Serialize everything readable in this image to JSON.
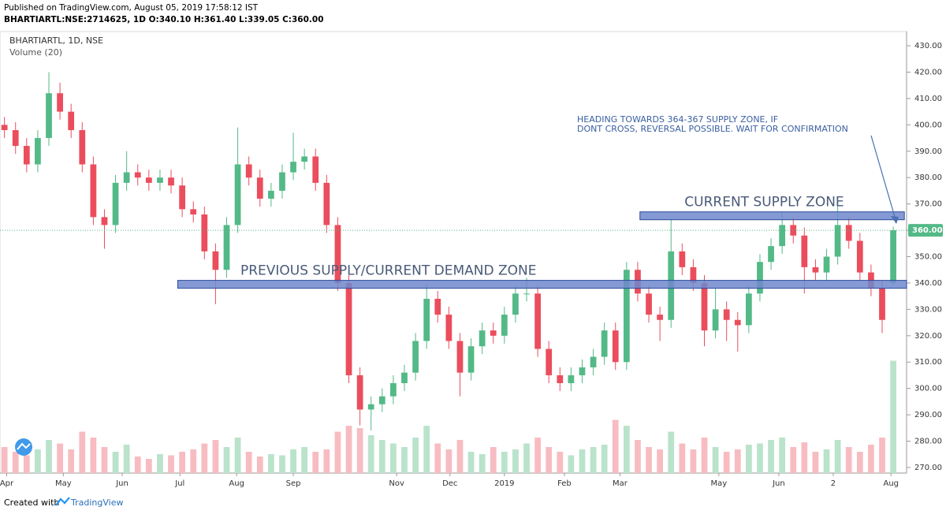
{
  "chart_data": {
    "type": "candlestick",
    "header": [
      "Published on TradingView.com, August 05, 2019 17:58:12 IST",
      "BHARTIARTL:NSE:2714625, 1D O:340.10 H:361.40 L:339.05 C:360.00"
    ],
    "legend": [
      "BHARTIARTL, 1D, NSE",
      "Volume (20)"
    ],
    "footer": [
      "Created with",
      "TradingView"
    ],
    "up_color": "#53b987",
    "down_color": "#eb4d5c",
    "volume_up_color": "#b9e3cb",
    "volume_down_color": "#f7bcc1",
    "open": [
      400,
      398,
      392,
      385,
      395,
      412,
      405,
      398,
      385,
      365,
      362,
      378,
      382,
      380,
      378,
      380,
      377,
      368,
      366,
      352,
      345,
      362,
      385,
      380,
      372,
      375,
      382,
      386,
      388,
      378,
      362,
      340,
      305,
      292,
      294,
      297,
      302,
      306,
      318,
      334,
      328,
      318,
      306,
      316,
      322,
      320,
      328,
      336,
      336,
      315,
      305,
      302,
      305,
      308,
      312,
      322,
      310,
      345,
      336,
      328,
      326,
      352,
      346,
      340,
      322,
      330,
      326,
      324,
      336,
      348,
      354,
      362,
      358,
      346,
      344,
      350,
      362,
      356,
      344,
      338,
      340.1
    ],
    "high": [
      403,
      401,
      395,
      398,
      420,
      416,
      408,
      401,
      388,
      368,
      381,
      390,
      385,
      383,
      383,
      383,
      380,
      371,
      369,
      355,
      365,
      399,
      388,
      383,
      378,
      385,
      397,
      391,
      391,
      381,
      365,
      343,
      308,
      297,
      300,
      305,
      309,
      321,
      340,
      337,
      331,
      321,
      319,
      325,
      325,
      331,
      339,
      342,
      339,
      318,
      308,
      308,
      311,
      315,
      325,
      325,
      348,
      348,
      339,
      331,
      364,
      355,
      349,
      343,
      338,
      333,
      329,
      339,
      351,
      357,
      367,
      365,
      361,
      349,
      353,
      371,
      365,
      359,
      347,
      341,
      361.4
    ],
    "low": [
      395,
      389,
      382,
      382,
      392,
      402,
      395,
      382,
      362,
      353,
      359,
      375,
      377,
      375,
      375,
      374,
      365,
      363,
      349,
      332,
      342,
      359,
      377,
      369,
      369,
      372,
      379,
      383,
      375,
      359,
      337,
      302,
      286,
      284,
      291,
      294,
      299,
      303,
      315,
      325,
      315,
      297,
      303,
      313,
      317,
      317,
      325,
      333,
      312,
      302,
      299,
      299,
      302,
      305,
      309,
      307,
      307,
      333,
      325,
      318,
      323,
      343,
      337,
      316,
      319,
      318,
      314,
      321,
      333,
      345,
      351,
      355,
      336,
      341,
      341,
      347,
      353,
      341,
      335,
      321,
      339.05
    ],
    "close": [
      398,
      392,
      385,
      395,
      412,
      405,
      398,
      385,
      365,
      362,
      378,
      382,
      380,
      378,
      380,
      377,
      368,
      366,
      352,
      345,
      362,
      385,
      380,
      372,
      375,
      382,
      386,
      388,
      378,
      362,
      340,
      305,
      292,
      294,
      297,
      302,
      306,
      318,
      334,
      328,
      318,
      306,
      316,
      322,
      320,
      328,
      336,
      336,
      315,
      305,
      302,
      305,
      308,
      312,
      322,
      310,
      345,
      336,
      328,
      326,
      352,
      346,
      340,
      322,
      330,
      326,
      324,
      336,
      348,
      354,
      362,
      358,
      346,
      344,
      350,
      362,
      356,
      344,
      338,
      326,
      360
    ],
    "volume": [
      22,
      18,
      15,
      20,
      28,
      25,
      20,
      35,
      30,
      22,
      18,
      24,
      14,
      12,
      16,
      15,
      18,
      20,
      25,
      28,
      22,
      30,
      18,
      14,
      16,
      15,
      20,
      22,
      18,
      20,
      35,
      40,
      38,
      32,
      28,
      25,
      22,
      30,
      40,
      25,
      20,
      28,
      18,
      16,
      22,
      18,
      20,
      25,
      30,
      22,
      18,
      15,
      20,
      22,
      24,
      45,
      40,
      28,
      22,
      20,
      35,
      25,
      20,
      30,
      22,
      18,
      20,
      24,
      25,
      28,
      30,
      22,
      26,
      18,
      20,
      28,
      22,
      18,
      24,
      30,
      95
    ],
    "vlim": [
      0,
      100
    ],
    "xlim": [
      -0.4,
      81.2
    ],
    "xticks": [
      {
        "value": 0.2,
        "label": "Apr"
      },
      {
        "value": 5.3,
        "label": "May"
      },
      {
        "value": 10.6,
        "label": "Jun"
      },
      {
        "value": 15.8,
        "label": "Jul"
      },
      {
        "value": 20.9,
        "label": "Aug"
      },
      {
        "value": 26.0,
        "label": "Sep"
      },
      {
        "value": 35.3,
        "label": "Nov"
      },
      {
        "value": 40.1,
        "label": "Dec"
      },
      {
        "value": 45.0,
        "label": "2019"
      },
      {
        "value": 50.4,
        "label": "Feb"
      },
      {
        "value": 55.4,
        "label": "Mar"
      },
      {
        "value": 64.3,
        "label": "May"
      },
      {
        "value": 69.7,
        "label": "Jun"
      },
      {
        "value": 74.6,
        "label": "2"
      },
      {
        "value": 79.8,
        "label": "Aug"
      }
    ],
    "ylim": [
      267.9,
      435.4
    ],
    "yticks": [
      {
        "value": 270,
        "label": "270.00"
      },
      {
        "value": 280,
        "label": "280.00"
      },
      {
        "value": 290,
        "label": "290.00"
      },
      {
        "value": 300,
        "label": "300.00"
      },
      {
        "value": 310,
        "label": "310.00"
      },
      {
        "value": 320,
        "label": "320.00"
      },
      {
        "value": 330,
        "label": "330.00"
      },
      {
        "value": 340,
        "label": "340.00"
      },
      {
        "value": 350,
        "label": "350.00"
      },
      {
        "value": 360,
        "label": "360.00"
      },
      {
        "value": 370,
        "label": "370.00"
      },
      {
        "value": 380,
        "label": "380.00"
      },
      {
        "value": 390,
        "label": "390.00"
      },
      {
        "value": 400,
        "label": "400.00"
      },
      {
        "value": 410,
        "label": "410.00"
      },
      {
        "value": 420,
        "label": "420.00"
      },
      {
        "value": 430,
        "label": "430.00"
      }
    ],
    "last_price": {
      "value": 360,
      "label": "360.00"
    },
    "zones": [
      {
        "label": "CURRENT SUPPLY ZONE",
        "low": 364,
        "high": 367,
        "start": 57.2,
        "end": 81.0
      },
      {
        "label": "PREVIOUS SUPPLY/CURRENT DEMAND ZONE",
        "low": 338,
        "high": 341,
        "start": 15.6,
        "end": 81.2
      }
    ],
    "annotation": [
      "HEADING TOWARDS 364-367 SUPPLY ZONE, IF",
      "DONT CROSS, REVERSAL POSSIBLE. WAIT FOR CONFIRMATION"
    ]
  }
}
